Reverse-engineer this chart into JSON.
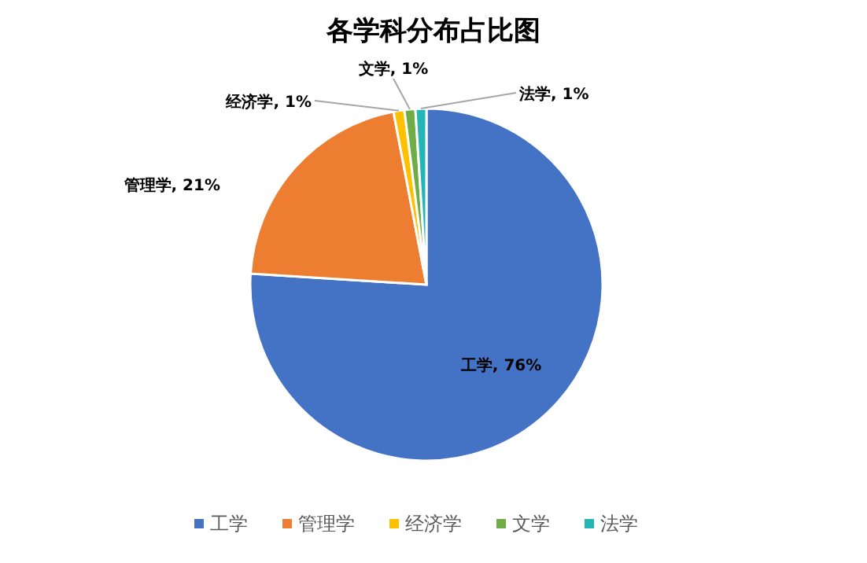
{
  "chart_data": {
    "type": "pie",
    "title": "各学科分布占比图",
    "categories": [
      "工学",
      "管理学",
      "经济学",
      "文学",
      "法学"
    ],
    "values": [
      76,
      21,
      1,
      1,
      1
    ],
    "colors": [
      "#4472c4",
      "#ed7d31",
      "#ffc000",
      "#70ad47",
      "#26b5b5"
    ],
    "value_labels": [
      "工学, 76%",
      "管理学, 21%",
      "经济学, 1%",
      "文学, 1%",
      "法学, 1%"
    ],
    "legend": "bottom"
  }
}
